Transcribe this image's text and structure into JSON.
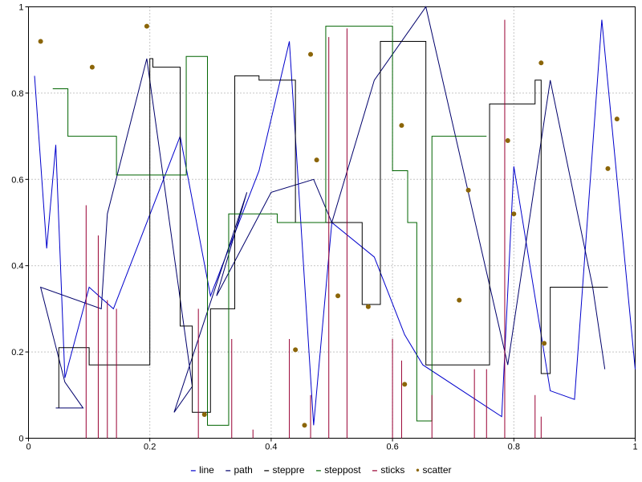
{
  "figure": {
    "background": "#ffffff",
    "border_color": "#000000",
    "grid_color": "#8c8c8c"
  },
  "chart_data": {
    "type": "line",
    "title": "",
    "xlabel": "",
    "ylabel": "",
    "xlim": [
      0,
      1
    ],
    "ylim": [
      0,
      1
    ],
    "grid": true,
    "legend_position": "bottom",
    "xticks": [
      0,
      0.2,
      0.4,
      0.6,
      0.8,
      1
    ],
    "yticks": [
      0,
      0.2,
      0.4,
      0.6,
      0.8,
      1
    ],
    "xtick_labels": [
      "0",
      "0.2",
      "0.4",
      "0.6",
      "0.8",
      "1"
    ],
    "ytick_labels": [
      "0",
      "0.2",
      "0.4",
      "0.6",
      "0.8",
      "1"
    ],
    "series": [
      {
        "name": "line",
        "type": "line",
        "color": "#0000cc",
        "marker": "–",
        "points": [
          [
            0.01,
            0.84
          ],
          [
            0.03,
            0.44
          ],
          [
            0.045,
            0.68
          ],
          [
            0.06,
            0.14
          ],
          [
            0.1,
            0.35
          ],
          [
            0.14,
            0.3
          ],
          [
            0.25,
            0.7
          ],
          [
            0.3,
            0.33
          ],
          [
            0.38,
            0.62
          ],
          [
            0.43,
            0.92
          ],
          [
            0.47,
            0.03
          ],
          [
            0.5,
            0.5
          ],
          [
            0.57,
            0.42
          ],
          [
            0.62,
            0.24
          ],
          [
            0.65,
            0.17
          ],
          [
            0.78,
            0.05
          ],
          [
            0.8,
            0.63
          ],
          [
            0.86,
            0.11
          ],
          [
            0.9,
            0.09
          ],
          [
            0.945,
            0.97
          ],
          [
            1.0,
            0.16
          ]
        ]
      },
      {
        "name": "path",
        "type": "path",
        "color": "#00006b",
        "marker": "–",
        "points": [
          [
            0.045,
            0.07
          ],
          [
            0.09,
            0.07
          ],
          [
            0.06,
            0.13
          ],
          [
            0.02,
            0.35
          ],
          [
            0.12,
            0.3
          ],
          [
            0.13,
            0.52
          ],
          [
            0.195,
            0.88
          ],
          [
            0.27,
            0.12
          ],
          [
            0.24,
            0.06
          ],
          [
            0.36,
            0.57
          ],
          [
            0.31,
            0.33
          ],
          [
            0.4,
            0.57
          ],
          [
            0.47,
            0.6
          ],
          [
            0.5,
            0.5
          ],
          [
            0.57,
            0.83
          ],
          [
            0.655,
            1.0
          ],
          [
            0.79,
            0.17
          ],
          [
            0.86,
            0.83
          ],
          [
            0.93,
            0.35
          ],
          [
            0.95,
            0.16
          ]
        ]
      },
      {
        "name": "steppre",
        "type": "steppre",
        "color": "#000000",
        "marker": "–",
        "points": [
          [
            0.05,
            0.07
          ],
          [
            0.1,
            0.21
          ],
          [
            0.12,
            0.17
          ],
          [
            0.2,
            0.17
          ],
          [
            0.205,
            0.88
          ],
          [
            0.25,
            0.86
          ],
          [
            0.27,
            0.26
          ],
          [
            0.3,
            0.06
          ],
          [
            0.34,
            0.3
          ],
          [
            0.38,
            0.84
          ],
          [
            0.44,
            0.83
          ],
          [
            0.46,
            0.5
          ],
          [
            0.55,
            0.5
          ],
          [
            0.58,
            0.31
          ],
          [
            0.63,
            0.92
          ],
          [
            0.655,
            0.92
          ],
          [
            0.7,
            0.17
          ],
          [
            0.76,
            0.17
          ],
          [
            0.79,
            0.775
          ],
          [
            0.835,
            0.775
          ],
          [
            0.845,
            0.83
          ],
          [
            0.86,
            0.15
          ],
          [
            0.88,
            0.35
          ],
          [
            0.955,
            0.35
          ]
        ]
      },
      {
        "name": "steppost",
        "type": "steppost",
        "color": "#006400",
        "marker": "–",
        "points": [
          [
            0.04,
            0.81
          ],
          [
            0.065,
            0.7
          ],
          [
            0.145,
            0.61
          ],
          [
            0.26,
            0.885
          ],
          [
            0.295,
            0.03
          ],
          [
            0.33,
            0.52
          ],
          [
            0.41,
            0.5
          ],
          [
            0.49,
            0.955
          ],
          [
            0.6,
            0.62
          ],
          [
            0.625,
            0.5
          ],
          [
            0.64,
            0.04
          ],
          [
            0.665,
            0.7
          ],
          [
            0.755,
            0.7
          ]
        ]
      },
      {
        "name": "sticks",
        "type": "sticks",
        "color": "#990033",
        "marker": "–",
        "points": [
          [
            0.095,
            0.54
          ],
          [
            0.115,
            0.47
          ],
          [
            0.13,
            0.32
          ],
          [
            0.145,
            0.3
          ],
          [
            0.28,
            0.3
          ],
          [
            0.335,
            0.23
          ],
          [
            0.37,
            0.02
          ],
          [
            0.43,
            0.23
          ],
          [
            0.465,
            0.1
          ],
          [
            0.495,
            0.93
          ],
          [
            0.525,
            0.95
          ],
          [
            0.6,
            0.23
          ],
          [
            0.615,
            0.18
          ],
          [
            0.665,
            0.1
          ],
          [
            0.735,
            0.16
          ],
          [
            0.755,
            0.16
          ],
          [
            0.785,
            0.97
          ],
          [
            0.835,
            0.1
          ],
          [
            0.845,
            0.05
          ]
        ]
      },
      {
        "name": "scatter",
        "type": "scatter",
        "color": "#8b6508",
        "marker": "•",
        "points": [
          [
            0.02,
            0.92
          ],
          [
            0.105,
            0.86
          ],
          [
            0.195,
            0.955
          ],
          [
            0.29,
            0.055
          ],
          [
            0.44,
            0.205
          ],
          [
            0.455,
            0.03
          ],
          [
            0.465,
            0.89
          ],
          [
            0.475,
            0.645
          ],
          [
            0.51,
            0.33
          ],
          [
            0.56,
            0.305
          ],
          [
            0.615,
            0.725
          ],
          [
            0.62,
            0.125
          ],
          [
            0.71,
            0.32
          ],
          [
            0.725,
            0.575
          ],
          [
            0.79,
            0.69
          ],
          [
            0.8,
            0.52
          ],
          [
            0.845,
            0.87
          ],
          [
            0.85,
            0.22
          ],
          [
            0.955,
            0.625
          ],
          [
            0.97,
            0.74
          ]
        ]
      }
    ]
  }
}
